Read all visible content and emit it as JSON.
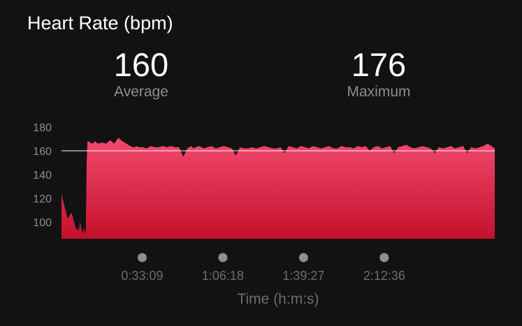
{
  "header": {
    "title": "Heart Rate (bpm)"
  },
  "stats": {
    "average": {
      "value": "160",
      "label": "Average"
    },
    "maximum": {
      "value": "176",
      "label": "Maximum"
    }
  },
  "colors": {
    "fill_top": "#f24a6e",
    "fill_bottom": "#c4102c",
    "average_line": "#ffffff",
    "tick_text": "#8e8e93",
    "marker_dot": "#8e8e93"
  },
  "chart_data": {
    "type": "area",
    "title": "Heart Rate (bpm)",
    "xlabel": "Time (h:m:s)",
    "ylabel": "",
    "x_unit": "seconds",
    "xlim": [
      0,
      10680
    ],
    "ylim": [
      86,
      180
    ],
    "y_ticks": [
      100,
      120,
      140,
      160,
      180
    ],
    "x_ticks": [
      {
        "value": 1989,
        "label": "0:33:09"
      },
      {
        "value": 3978,
        "label": "1:06:18"
      },
      {
        "value": 5967,
        "label": "1:39:27"
      },
      {
        "value": 7956,
        "label": "2:12:36"
      }
    ],
    "average_line": 160,
    "maximum": 176,
    "grid": false,
    "x": [
      0,
      60,
      150,
      250,
      350,
      420,
      460,
      520,
      560,
      600,
      620,
      640,
      660,
      700,
      760,
      830,
      900,
      1000,
      1100,
      1200,
      1300,
      1400,
      1500,
      1600,
      1700,
      1750,
      1800,
      1850,
      1900,
      2000,
      2100,
      2200,
      2300,
      2400,
      2500,
      2600,
      2700,
      2800,
      2900,
      3000,
      3100,
      3200,
      3250,
      3300,
      3400,
      3500,
      3600,
      3700,
      3800,
      3900,
      4000,
      4100,
      4200,
      4300,
      4400,
      4500,
      4600,
      4700,
      4800,
      4900,
      5000,
      5100,
      5200,
      5300,
      5400,
      5500,
      5600,
      5700,
      5800,
      5900,
      6000,
      6100,
      6200,
      6300,
      6400,
      6500,
      6600,
      6700,
      6800,
      6900,
      7000,
      7100,
      7200,
      7300,
      7400,
      7500,
      7600,
      7700,
      7800,
      7900,
      8000,
      8100,
      8200,
      8300,
      8400,
      8500,
      8600,
      8700,
      8800,
      8900,
      9000,
      9100,
      9200,
      9300,
      9400,
      9500,
      9600,
      9700,
      9800,
      9900,
      10000,
      10100,
      10200,
      10300,
      10400,
      10500,
      10600,
      10680
    ],
    "y": [
      124,
      115,
      103,
      108,
      95,
      93,
      100,
      90,
      95,
      90,
      150,
      168,
      168,
      167,
      166,
      168,
      166,
      167,
      166,
      169,
      166,
      171,
      168,
      166,
      164,
      163,
      163,
      164,
      163,
      163,
      162,
      164,
      163,
      163,
      164,
      163,
      164,
      163,
      163,
      155,
      162,
      164,
      162,
      163,
      164,
      162,
      163,
      164,
      162,
      163,
      164,
      163,
      162,
      156,
      163,
      162,
      162,
      163,
      162,
      163,
      164,
      163,
      162,
      162,
      163,
      158,
      164,
      163,
      162,
      164,
      163,
      162,
      164,
      163,
      162,
      163,
      164,
      162,
      162,
      164,
      163,
      163,
      162,
      164,
      163,
      164,
      160,
      163,
      164,
      162,
      163,
      164,
      158,
      163,
      164,
      165,
      163,
      162,
      163,
      164,
      163,
      162,
      158,
      163,
      162,
      163,
      164,
      162,
      163,
      164,
      158,
      163,
      162,
      163,
      164,
      166,
      164,
      162
    ]
  }
}
